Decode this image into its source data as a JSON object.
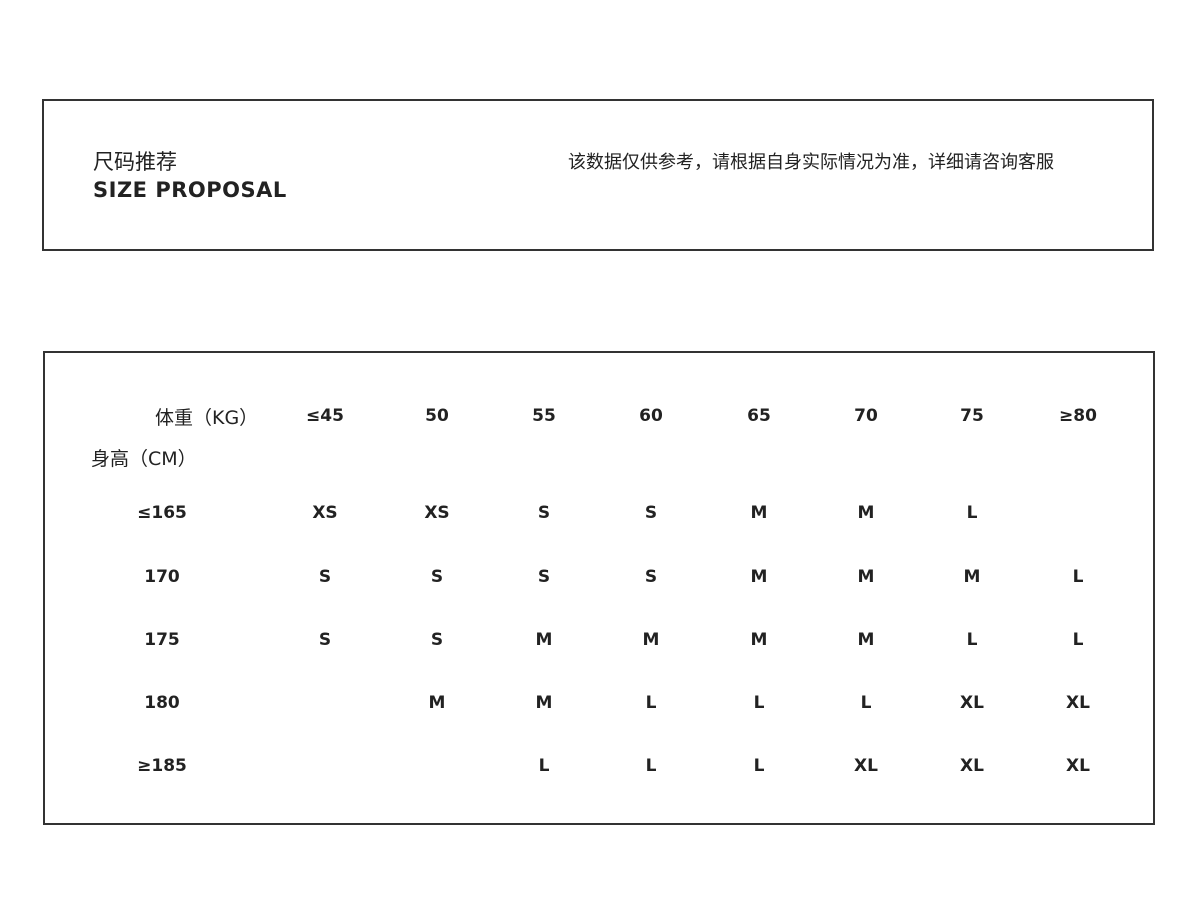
{
  "header": {
    "title_cn": "尺码推荐",
    "title_en": "SIZE  PROPOSAL",
    "note": "该数据仅供参考，请根据自身实际情况为准，详细请咨询客服"
  },
  "size_table": {
    "weight_label": "体重（KG）",
    "height_label": "身高（CM）",
    "weights": [
      "≤45",
      "50",
      "55",
      "60",
      "65",
      "70",
      "75",
      "≥80"
    ],
    "rows": [
      {
        "height": "≤165",
        "sizes": [
          "XS",
          "XS",
          "S",
          "S",
          "M",
          "M",
          "L",
          ""
        ]
      },
      {
        "height": "170",
        "sizes": [
          "S",
          "S",
          "S",
          "S",
          "M",
          "M",
          "M",
          "L"
        ]
      },
      {
        "height": "175",
        "sizes": [
          "S",
          "S",
          "M",
          "M",
          "M",
          "M",
          "L",
          "L"
        ]
      },
      {
        "height": "180",
        "sizes": [
          "",
          "M",
          "M",
          "L",
          "L",
          "L",
          "XL",
          "XL"
        ]
      },
      {
        "height": "≥185",
        "sizes": [
          "",
          "",
          "L",
          "L",
          "L",
          "XL",
          "XL",
          "XL"
        ]
      }
    ]
  }
}
